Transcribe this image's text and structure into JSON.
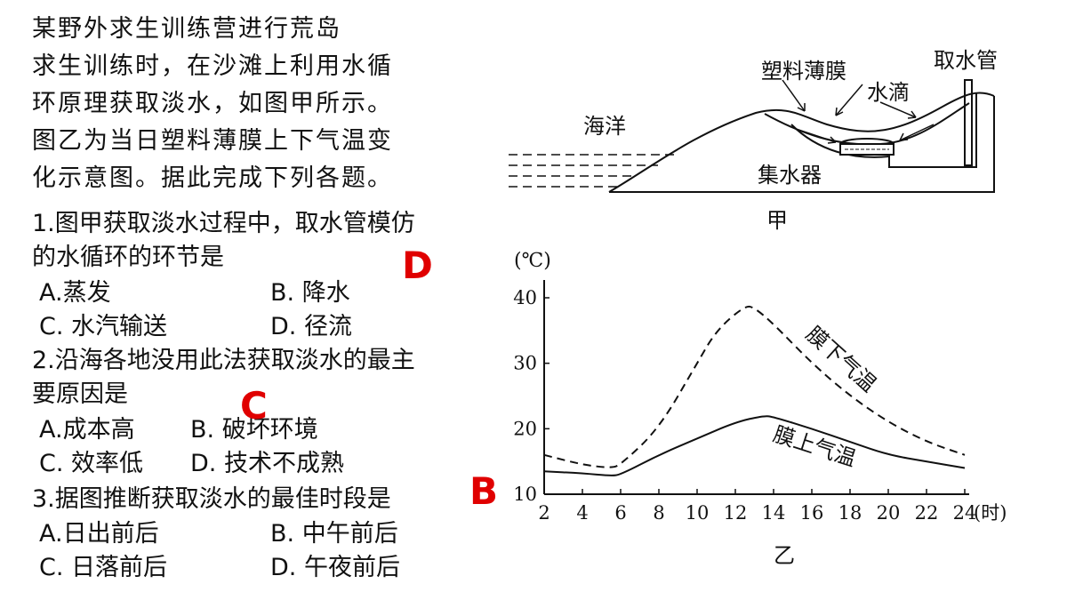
{
  "intro": "某野外求生训练营进行荒岛\n求生训练时，在沙滩上利用水循\n环原理获取淡水，如图甲所示。\n图乙为当日塑料薄膜上下气温变\n化示意图。据此完成下列各题。",
  "questions": [
    {
      "line1": "1.图甲获取淡水过程中，取水管模仿",
      "line2": "的水循环的环节是",
      "options": [
        "A.蒸发",
        "B. 降水",
        "C. 水汽输送",
        "D. 径流"
      ],
      "answer": "D"
    },
    {
      "line1": "2.沿海各地没用此法获取淡水的最主",
      "line2": "要原因是",
      "options": [
        "A.成本高",
        "B. 破坏环境",
        "C. 效率低",
        "D. 技术不成熟"
      ],
      "answer": "C"
    },
    {
      "line1": "3.据图推断获取淡水的最佳时段是",
      "line2": "",
      "options": [
        "A.日出前后",
        "B. 中午前后",
        "C. 日落前后",
        "D. 午夜前后"
      ],
      "answer": "B"
    }
  ],
  "diagram": {
    "caption": "甲",
    "labels": {
      "ocean": "海洋",
      "film": "塑料薄膜",
      "drops": "水滴",
      "pipe": "取水管",
      "collector": "集水器"
    }
  },
  "chart_data": {
    "type": "line",
    "caption": "乙",
    "ylabel": "(℃)",
    "xlabel": "(时)",
    "xlim": [
      2,
      24
    ],
    "ylim": [
      10,
      40
    ],
    "x_ticks": [
      2,
      4,
      6,
      8,
      10,
      12,
      14,
      16,
      18,
      20,
      22,
      24
    ],
    "y_ticks": [
      10,
      20,
      30,
      40
    ],
    "series": [
      {
        "name": "膜下气温",
        "style": "dashed",
        "x": [
          2,
          4,
          5.5,
          6,
          8,
          10,
          11,
          12.5,
          13,
          14,
          16,
          18,
          20,
          22,
          24
        ],
        "y": [
          16,
          14.5,
          14,
          14.5,
          20,
          30,
          35,
          38.8,
          38.5,
          36,
          30,
          25,
          21,
          18,
          16
        ]
      },
      {
        "name": "膜上气温",
        "style": "solid",
        "x": [
          2,
          4,
          5.5,
          6,
          8,
          10,
          12,
          13.5,
          14,
          16,
          18,
          20,
          22,
          24
        ],
        "y": [
          13.5,
          13.2,
          12.8,
          13,
          16,
          18.5,
          21,
          22,
          21.8,
          20,
          18,
          16,
          15,
          14
        ]
      }
    ],
    "colors": {
      "line": "#111111",
      "axis": "#111111"
    }
  },
  "colors": {
    "answer": "#e00000"
  }
}
